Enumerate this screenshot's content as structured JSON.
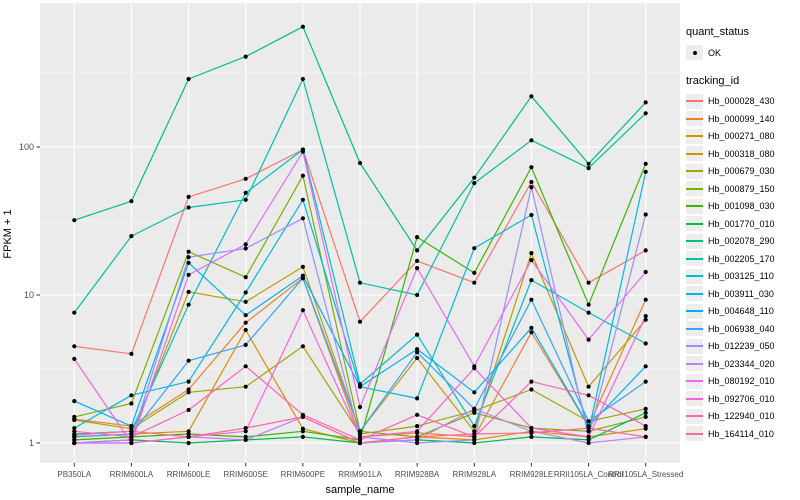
{
  "figure": {
    "background": "#FFFFFF"
  },
  "chart_data": {
    "type": "line",
    "title": "",
    "xlabel": "sample_name",
    "ylabel": "FPKM + 1",
    "y_scale": "log10",
    "y_ticks": [
      1,
      10,
      100
    ],
    "y_minor_gridlines": [
      3.162,
      31.62,
      316.2
    ],
    "ylim": [
      0.73,
      940
    ],
    "grid": "major and minor white gridlines on gray panel",
    "legend_position": "right",
    "point_marker": {
      "shape": "point",
      "color": "#000000"
    },
    "categories": [
      "PB350LA",
      "RRIM600LA",
      "RRIM600LE",
      "RRIM600SE",
      "RRIM600PE",
      "RRIM901LA",
      "RRIM928BA",
      "RRIM928LA",
      "RRIM928LE",
      "RRII105LA_Control",
      "RRII105LA_Stressed"
    ],
    "series": [
      {
        "name": "Hb_000028_430",
        "color": "#F8766D",
        "values": [
          4.5,
          4.0,
          46,
          61,
          96,
          6.6,
          17,
          12.1,
          58,
          12.1,
          20
        ]
      },
      {
        "name": "Hb_000099_140",
        "color": "#EA8331",
        "values": [
          1.45,
          1.3,
          2.3,
          6.5,
          13,
          1.1,
          1.17,
          1.1,
          5.6,
          1.3,
          9.3
        ]
      },
      {
        "name": "Hb_000271_080",
        "color": "#D89000",
        "values": [
          1.1,
          1.15,
          1.2,
          5.8,
          1.25,
          1.0,
          1.1,
          1.05,
          1.2,
          1.1,
          1.25
        ]
      },
      {
        "name": "Hb_000318_080",
        "color": "#C09B00",
        "values": [
          1.05,
          1.1,
          10.5,
          9.0,
          15.5,
          1.2,
          3.75,
          1.2,
          19.2,
          2.4,
          6.8
        ]
      },
      {
        "name": "Hb_000679_030",
        "color": "#A3A500",
        "values": [
          1.43,
          1.25,
          2.2,
          2.4,
          4.5,
          1.15,
          1.3,
          1.65,
          2.3,
          1.4,
          1.7
        ]
      },
      {
        "name": "Hb_000879_150",
        "color": "#7CAE00",
        "values": [
          1.5,
          1.85,
          19.6,
          13.2,
          64,
          1.2,
          1.1,
          1.6,
          1.26,
          1.2,
          1.5
        ]
      },
      {
        "name": "Hb_001098_030",
        "color": "#39B600",
        "values": [
          1.05,
          1.1,
          1.15,
          1.1,
          1.2,
          1.05,
          24.6,
          14.1,
          73,
          8.6,
          77
        ]
      },
      {
        "name": "Hb_001770_010",
        "color": "#00BB4E",
        "values": [
          1.0,
          1.05,
          1.0,
          1.05,
          1.1,
          1.0,
          1.05,
          1.0,
          1.1,
          1.05,
          1.6
        ]
      },
      {
        "name": "Hb_002078_290",
        "color": "#00BF7D",
        "values": [
          32,
          43,
          288,
          408,
          650,
          78,
          20,
          62,
          220,
          77,
          200
        ]
      },
      {
        "name": "Hb_002205_170",
        "color": "#00C1A3",
        "values": [
          7.6,
          25,
          39,
          44,
          288,
          12.1,
          10,
          57,
          111,
          72,
          169
        ]
      },
      {
        "name": "Hb_003125_110",
        "color": "#00BFC4",
        "values": [
          1.15,
          1.2,
          8.6,
          49,
          96,
          2.5,
          5.4,
          1.3,
          12.6,
          7.6,
          4.7
        ]
      },
      {
        "name": "Hb_003911_030",
        "color": "#00BAE0",
        "values": [
          1.26,
          2.1,
          2.6,
          10.4,
          44,
          2.4,
          2.0,
          20.7,
          34.7,
          1.2,
          68
        ]
      },
      {
        "name": "Hb_004648_110",
        "color": "#00B0F6",
        "values": [
          1.92,
          1.3,
          16.5,
          7.3,
          13.5,
          2.4,
          4.3,
          2.2,
          6.0,
          1.3,
          3.3
        ]
      },
      {
        "name": "Hb_006938_040",
        "color": "#35A2FF",
        "values": [
          1.1,
          1.15,
          3.6,
          4.6,
          13,
          1.2,
          4.1,
          1.7,
          9.3,
          1.4,
          2.6
        ]
      },
      {
        "name": "Hb_012239_050",
        "color": "#9590FF",
        "values": [
          1.0,
          1.05,
          18,
          20.6,
          33,
          1.1,
          1.0,
          1.05,
          53.6,
          1.1,
          35
        ]
      },
      {
        "name": "Hb_023344_020",
        "color": "#C77CFF",
        "values": [
          1.0,
          1.0,
          1.1,
          1.05,
          1.5,
          1.0,
          1.05,
          1.7,
          1.2,
          1.0,
          1.1
        ]
      },
      {
        "name": "Hb_080192_010",
        "color": "#E76BF3",
        "values": [
          1.0,
          1.0,
          13.7,
          22,
          93,
          1.75,
          15.2,
          3.3,
          17.2,
          5.0,
          14.3
        ]
      },
      {
        "name": "Hb_092706_010",
        "color": "#FA62DB",
        "values": [
          3.7,
          1.0,
          1.1,
          1.2,
          7.9,
          1.1,
          1.2,
          3.2,
          1.26,
          1.1,
          7.2
        ]
      },
      {
        "name": "Hb_122940_010",
        "color": "#FF62BC",
        "values": [
          1.2,
          1.1,
          1.67,
          3.3,
          1.55,
          1.05,
          1.55,
          1.1,
          2.6,
          2.1,
          1.3
        ]
      },
      {
        "name": "Hb_164114_010",
        "color": "#FF6A98",
        "values": [
          1.13,
          1.2,
          1.1,
          1.26,
          1.5,
          1.0,
          1.1,
          1.15,
          1.17,
          1.26,
          1.1
        ]
      }
    ]
  },
  "legend": {
    "quant_status_title": "quant_status",
    "quant_status_items": [
      {
        "label": "OK",
        "marker": "point",
        "color": "#000000"
      }
    ],
    "tracking_id_title": "tracking_id"
  },
  "style_colors": {
    "panel_bg": "#EBEBEB",
    "grid_line": "#FFFFFF",
    "legend_key_bg": "#EDEDED",
    "tick_label": "#4D4D4D",
    "title_text": "#000000"
  }
}
